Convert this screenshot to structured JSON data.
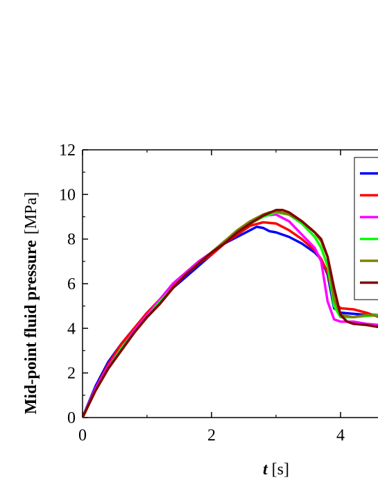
{
  "chart_data": {
    "type": "line",
    "title": "",
    "xlabel_var": "t",
    "xlabel_unit": "[s]",
    "ylabel_main": "Mid-point fluid pressure",
    "ylabel_unit": "[MPa]",
    "xlim": [
      0,
      4.6
    ],
    "ylim": [
      0,
      12
    ],
    "xticks": [
      0,
      2,
      4
    ],
    "yticks": [
      0,
      2,
      4,
      6,
      8,
      10,
      12
    ],
    "xtick_labels": [
      "0",
      "2",
      "4"
    ],
    "ytick_labels": [
      "0",
      "2",
      "4",
      "6",
      "8",
      "10",
      "12"
    ],
    "legend_position": "top-right",
    "series": [
      {
        "color": "#0000ff",
        "x": [
          0,
          0.2,
          0.4,
          0.6,
          0.8,
          1.0,
          1.2,
          1.4,
          1.6,
          1.8,
          2.0,
          2.2,
          2.4,
          2.6,
          2.7,
          2.8,
          2.9,
          3.0,
          3.2,
          3.4,
          3.6,
          3.7,
          3.8,
          3.9,
          4.0,
          4.2,
          4.4,
          4.6
        ],
        "y": [
          0,
          1.4,
          2.5,
          3.3,
          4.0,
          4.6,
          5.2,
          5.8,
          6.3,
          6.8,
          7.3,
          7.8,
          8.1,
          8.4,
          8.55,
          8.5,
          8.35,
          8.3,
          8.1,
          7.8,
          7.4,
          7.1,
          6.4,
          4.9,
          4.7,
          4.65,
          4.6,
          4.6
        ]
      },
      {
        "color": "#ff0000",
        "x": [
          0,
          0.2,
          0.4,
          0.6,
          0.8,
          1.0,
          1.2,
          1.4,
          1.6,
          1.8,
          2.0,
          2.2,
          2.4,
          2.6,
          2.8,
          3.0,
          3.2,
          3.4,
          3.6,
          3.7,
          3.8,
          3.9,
          4.0,
          4.2,
          4.4,
          4.6
        ],
        "y": [
          0,
          1.3,
          2.4,
          3.3,
          4.0,
          4.7,
          5.3,
          5.9,
          6.4,
          6.9,
          7.3,
          7.8,
          8.2,
          8.6,
          8.75,
          8.7,
          8.4,
          8.0,
          7.5,
          7.1,
          6.5,
          5.2,
          4.9,
          4.85,
          4.7,
          4.5
        ]
      },
      {
        "color": "#ff00ff",
        "x": [
          0,
          0.2,
          0.4,
          0.6,
          0.8,
          1.0,
          1.2,
          1.4,
          1.6,
          1.8,
          2.0,
          2.2,
          2.4,
          2.6,
          2.8,
          3.0,
          3.2,
          3.4,
          3.6,
          3.7,
          3.8,
          3.9,
          4.0,
          4.2,
          4.4,
          4.6
        ],
        "y": [
          0,
          1.3,
          2.3,
          3.1,
          3.9,
          4.6,
          5.3,
          6.0,
          6.5,
          7.0,
          7.4,
          7.9,
          8.3,
          8.7,
          9.05,
          9.1,
          8.8,
          8.2,
          7.6,
          7.0,
          5.2,
          4.4,
          4.3,
          4.3,
          4.2,
          4.15
        ]
      },
      {
        "color": "#00ff00",
        "x": [
          0,
          0.2,
          0.4,
          0.6,
          0.8,
          1.0,
          1.2,
          1.4,
          1.6,
          1.8,
          2.0,
          2.2,
          2.4,
          2.6,
          2.8,
          3.0,
          3.2,
          3.4,
          3.6,
          3.7,
          3.8,
          3.9,
          4.0,
          4.2,
          4.4,
          4.6
        ],
        "y": [
          0,
          1.2,
          2.2,
          3.1,
          3.8,
          4.5,
          5.2,
          5.8,
          6.4,
          6.9,
          7.4,
          7.9,
          8.3,
          8.7,
          9.0,
          9.2,
          9.1,
          8.7,
          8.1,
          7.6,
          6.8,
          5.0,
          4.5,
          4.5,
          4.55,
          4.6
        ]
      },
      {
        "color": "#808000",
        "x": [
          0,
          0.2,
          0.4,
          0.6,
          0.8,
          1.0,
          1.2,
          1.4,
          1.6,
          1.8,
          2.0,
          2.2,
          2.4,
          2.6,
          2.8,
          2.9,
          3.0,
          3.2,
          3.4,
          3.6,
          3.7,
          3.8,
          3.9,
          4.0,
          4.2,
          4.4,
          4.6
        ],
        "y": [
          0,
          1.2,
          2.2,
          3.0,
          3.8,
          4.5,
          5.1,
          5.8,
          6.4,
          6.9,
          7.4,
          7.9,
          8.4,
          8.8,
          9.1,
          9.2,
          9.25,
          9.1,
          8.8,
          8.3,
          7.9,
          7.2,
          5.3,
          4.6,
          4.5,
          4.6,
          4.55
        ]
      },
      {
        "color": "#800000",
        "x": [
          0,
          0.2,
          0.4,
          0.6,
          0.8,
          1.0,
          1.2,
          1.4,
          1.6,
          1.8,
          2.0,
          2.2,
          2.4,
          2.6,
          2.8,
          3.0,
          3.1,
          3.2,
          3.4,
          3.6,
          3.7,
          3.8,
          3.9,
          4.0,
          4.1,
          4.2,
          4.4,
          4.6
        ],
        "y": [
          0,
          1.2,
          2.2,
          3.0,
          3.8,
          4.5,
          5.1,
          5.8,
          6.4,
          6.9,
          7.4,
          7.8,
          8.3,
          8.7,
          9.05,
          9.3,
          9.3,
          9.2,
          8.8,
          8.3,
          8.0,
          7.2,
          5.8,
          4.6,
          4.3,
          4.2,
          4.15,
          4.05
        ]
      }
    ]
  }
}
